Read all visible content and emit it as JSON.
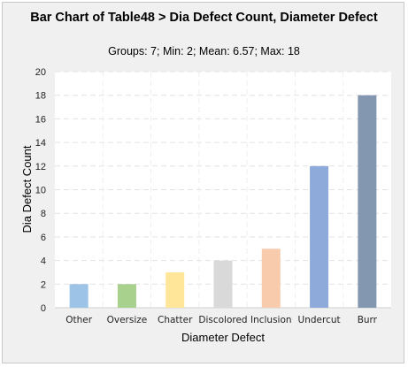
{
  "chart_data": {
    "type": "bar",
    "title": "Bar Chart of Table48 > Dia Defect Count, Diameter Defect",
    "subtitle": "Groups: 7; Min: 2; Mean: 6.57; Max: 18",
    "xlabel": "Diameter Defect",
    "ylabel": "Dia Defect Count",
    "categories": [
      "Other",
      "Oversize",
      "Chatter",
      "Discolored",
      "Inclusion",
      "Undercut",
      "Burr"
    ],
    "values": [
      2,
      2,
      3,
      4,
      5,
      12,
      18
    ],
    "colors": [
      "#9dc3e6",
      "#a9d18e",
      "#ffe699",
      "#d9d9d9",
      "#f8cbad",
      "#8eaadb",
      "#8497b0"
    ],
    "ylim": [
      0,
      20
    ],
    "yticks": [
      0,
      2,
      4,
      6,
      8,
      10,
      12,
      14,
      16,
      18,
      20
    ],
    "grid": true,
    "legend": "none"
  }
}
